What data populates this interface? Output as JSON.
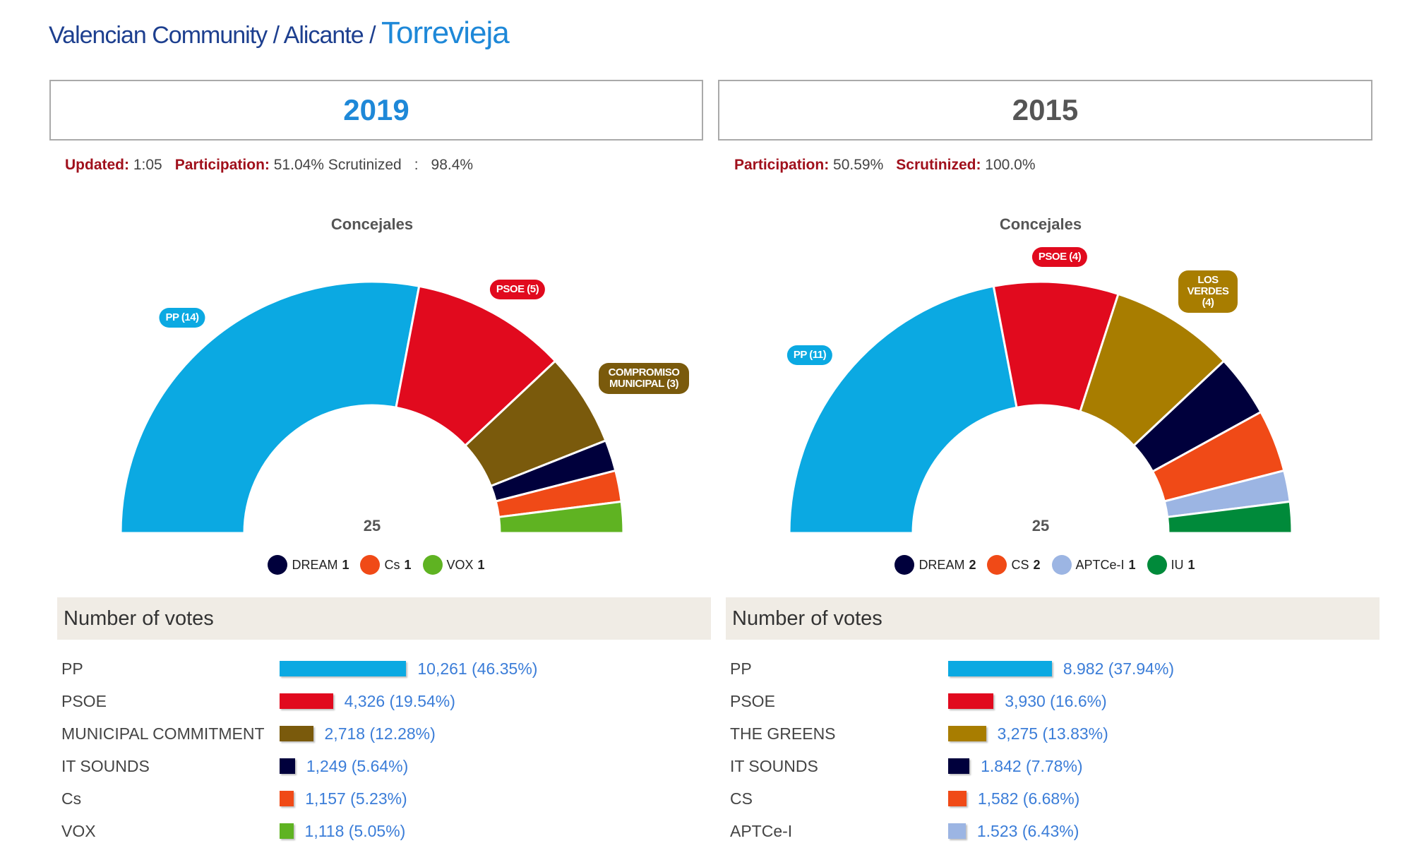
{
  "breadcrumb": {
    "region": "Valencian Community",
    "sep": "/",
    "province": "Alicante",
    "city": "Torrevieja"
  },
  "colors": {
    "year2019": "#1e88d8",
    "year2015": "#555555"
  },
  "chart_data": [
    {
      "type": "pie",
      "subtype": "semicircle-parliament",
      "year": "2019",
      "info": {
        "updated_label": "Updated:",
        "updated": "1:05",
        "participation_label": "Participation:",
        "participation": "51.04% Scrutinized",
        "scrutinized_label": ":",
        "scrutinized": "98.4%"
      },
      "title": "Concejales",
      "total": "25",
      "seats": [
        {
          "party": "PP",
          "label": "PP (14)",
          "seats": 14,
          "color": "#0ba9e2"
        },
        {
          "party": "PSOE",
          "label": "PSOE (5)",
          "seats": 5,
          "color": "#e10a1e"
        },
        {
          "party": "COMPROMISO MUNICIPAL",
          "label": "COMPROMISO MUNICIPAL (3)",
          "seats": 3,
          "color": "#7a5a0c"
        },
        {
          "party": "DREAM",
          "label": "DREAM",
          "seats": 1,
          "color": "#00003c"
        },
        {
          "party": "Cs",
          "label": "Cs",
          "seats": 1,
          "color": "#f04a17"
        },
        {
          "party": "VOX",
          "label": "VOX",
          "seats": 1,
          "color": "#5fb322"
        }
      ],
      "legend": [
        {
          "name": "DREAM",
          "n": "1",
          "color": "#00003c"
        },
        {
          "name": "Cs",
          "n": "1",
          "color": "#f04a17"
        },
        {
          "name": "VOX",
          "n": "1",
          "color": "#5fb322"
        }
      ],
      "votes_title": "Number of votes",
      "votes": [
        {
          "party": "PP",
          "value": "10,261 (46.35%)",
          "pct": 46.35,
          "color": "#0ba9e2"
        },
        {
          "party": "PSOE",
          "value": "4,326 (19.54%)",
          "pct": 19.54,
          "color": "#e10a1e"
        },
        {
          "party": "MUNICIPAL COMMITMENT",
          "value": "2,718 (12.28%)",
          "pct": 12.28,
          "color": "#7a5a0c"
        },
        {
          "party": "IT SOUNDS",
          "value": "1,249 (5.64%)",
          "pct": 5.64,
          "color": "#00003c"
        },
        {
          "party": "Cs",
          "value": "1,157 (5.23%)",
          "pct": 5.23,
          "color": "#f04a17"
        },
        {
          "party": "VOX",
          "value": "1,118 (5.05%)",
          "pct": 5.05,
          "color": "#5fb322"
        }
      ]
    },
    {
      "type": "pie",
      "subtype": "semicircle-parliament",
      "year": "2015",
      "info": {
        "participation_label": "Participation:",
        "participation": "50.59%",
        "scrutinized_label": "Scrutinized:",
        "scrutinized": "100.0%"
      },
      "title": "Concejales",
      "total": "25",
      "seats": [
        {
          "party": "PP",
          "label": "PP (11)",
          "seats": 11,
          "color": "#0ba9e2"
        },
        {
          "party": "PSOE",
          "label": "PSOE (4)",
          "seats": 4,
          "color": "#e10a1e"
        },
        {
          "party": "LOS VERDES",
          "label": "LOS VERDES (4)",
          "seats": 4,
          "color": "#a87d00"
        },
        {
          "party": "DREAM",
          "label": "DREAM",
          "seats": 2,
          "color": "#00003c"
        },
        {
          "party": "CS",
          "label": "CS",
          "seats": 2,
          "color": "#f04a17"
        },
        {
          "party": "APTCe-I",
          "label": "APTCe-I",
          "seats": 1,
          "color": "#9cb5e3"
        },
        {
          "party": "IU",
          "label": "IU",
          "seats": 1,
          "color": "#008a3a"
        }
      ],
      "legend": [
        {
          "name": "DREAM",
          "n": "2",
          "color": "#00003c"
        },
        {
          "name": "CS",
          "n": "2",
          "color": "#f04a17"
        },
        {
          "name": "APTCe-I",
          "n": "1",
          "color": "#9cb5e3"
        },
        {
          "name": "IU",
          "n": "1",
          "color": "#008a3a"
        }
      ],
      "votes_title": "Number of votes",
      "votes": [
        {
          "party": "PP",
          "value": "8.982 (37.94%)",
          "pct": 37.94,
          "color": "#0ba9e2"
        },
        {
          "party": "PSOE",
          "value": "3,930 (16.6%)",
          "pct": 16.6,
          "color": "#e10a1e"
        },
        {
          "party": "THE GREENS",
          "value": "3,275 (13.83%)",
          "pct": 13.83,
          "color": "#a87d00"
        },
        {
          "party": "IT SOUNDS",
          "value": "1.842 (7.78%)",
          "pct": 7.78,
          "color": "#00003c"
        },
        {
          "party": "CS",
          "value": "1,582 (6.68%)",
          "pct": 6.68,
          "color": "#f04a17"
        },
        {
          "party": "APTCe-I",
          "value": "1.523 (6.43%)",
          "pct": 6.43,
          "color": "#9cb5e3"
        }
      ]
    }
  ]
}
